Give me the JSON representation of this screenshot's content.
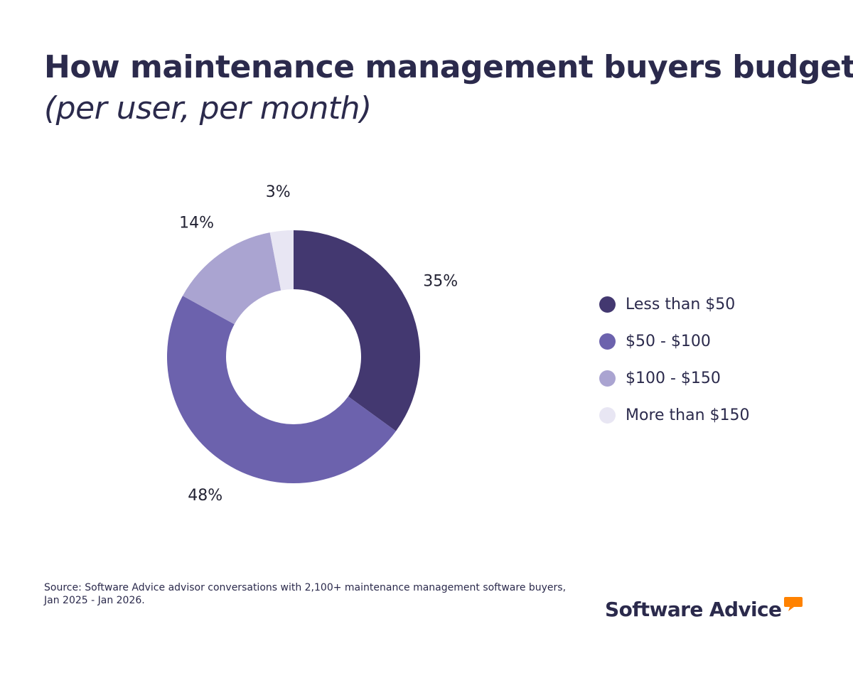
{
  "header": {
    "title": "How maintenance management buyers budget",
    "subtitle": "(per user, per month)"
  },
  "chart_data": {
    "type": "pie",
    "title": "How maintenance management buyers budget",
    "subtitle": "(per user, per month)",
    "donut": true,
    "categories": [
      "Less than $50",
      "$50 - $100",
      "$100 - $150",
      "More than $150"
    ],
    "values": [
      35,
      48,
      14,
      3
    ],
    "labels": [
      "35%",
      "48%",
      "14%",
      "3%"
    ],
    "colors": [
      "#433870",
      "#6c62ad",
      "#aaa4d1",
      "#e8e6f3"
    ],
    "legend_position": "right",
    "unit": "%"
  },
  "legend": {
    "items": [
      {
        "label": "Less than $50",
        "color": "#433870"
      },
      {
        "label": "$50 - $100",
        "color": "#6c62ad"
      },
      {
        "label": "$100 - $150",
        "color": "#aaa4d1"
      },
      {
        "label": "More than $150",
        "color": "#e8e6f3"
      }
    ]
  },
  "footer": {
    "source": "Source: Software Advice advisor conversations with 2,100+ maintenance management software buyers, Jan 2025 - Jan 2026.",
    "brand": "Software Advice",
    "brand_accent_color": "#ff8200"
  }
}
